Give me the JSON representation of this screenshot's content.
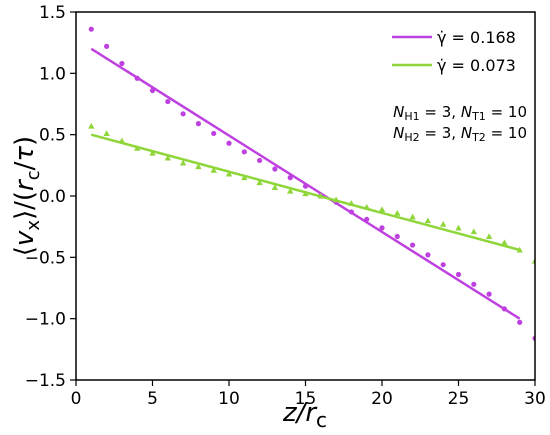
{
  "chart_data": {
    "type": "scatter",
    "title": "",
    "xlabel": "z/r_c",
    "ylabel": "⟨v_x⟩/(r_c/τ)",
    "xlim": [
      0,
      30
    ],
    "ylim": [
      -1.5,
      1.5
    ],
    "xticks": [
      0,
      5,
      10,
      15,
      20,
      25,
      30
    ],
    "yticks": [
      -1.5,
      -1.0,
      -0.5,
      0.0,
      0.5,
      1.0,
      1.5
    ],
    "xtick_labels": [
      "0",
      "5",
      "10",
      "15",
      "20",
      "25",
      "30"
    ],
    "ytick_labels": [
      "−1.5",
      "−1.0",
      "−0.5",
      "0.0",
      "0.5",
      "1.0",
      "1.5"
    ],
    "grid": false,
    "legend_position": "top-right",
    "series": [
      {
        "name": "γ̇ = 0.168",
        "legend_label": "γ̇ = 0.168",
        "color": "#bf40e0",
        "marker": "circle",
        "fit_line": {
          "x": [
            1,
            29
          ],
          "y": [
            1.2,
            -1.0
          ]
        },
        "points": {
          "x": [
            1,
            2,
            3,
            4,
            5,
            6,
            7,
            8,
            9,
            10,
            11,
            12,
            13,
            14,
            15,
            16,
            17,
            18,
            19,
            20,
            21,
            22,
            23,
            24,
            25,
            26,
            27,
            28,
            29,
            30
          ],
          "y": [
            1.36,
            1.22,
            1.08,
            0.96,
            0.86,
            0.77,
            0.67,
            0.59,
            0.51,
            0.43,
            0.36,
            0.29,
            0.22,
            0.15,
            0.08,
            0.0,
            -0.05,
            -0.13,
            -0.19,
            -0.26,
            -0.33,
            -0.4,
            -0.48,
            -0.56,
            -0.64,
            -0.72,
            -0.8,
            -0.92,
            -1.03,
            -1.16
          ]
        }
      },
      {
        "name": "γ̇ = 0.073",
        "legend_label": "γ̇ = 0.073",
        "color": "#8fd63a",
        "marker": "triangle",
        "fit_line": {
          "x": [
            1,
            29
          ],
          "y": [
            0.5,
            -0.44
          ]
        },
        "points": {
          "x": [
            1,
            2,
            3,
            4,
            5,
            6,
            7,
            8,
            9,
            10,
            11,
            12,
            13,
            14,
            15,
            16,
            17,
            18,
            19,
            20,
            21,
            22,
            23,
            24,
            25,
            26,
            27,
            28,
            29,
            30
          ],
          "y": [
            0.57,
            0.51,
            0.45,
            0.39,
            0.35,
            0.31,
            0.27,
            0.24,
            0.21,
            0.18,
            0.15,
            0.11,
            0.07,
            0.04,
            0.02,
            0.0,
            -0.03,
            -0.06,
            -0.09,
            -0.11,
            -0.14,
            -0.17,
            -0.2,
            -0.23,
            -0.26,
            -0.29,
            -0.33,
            -0.38,
            -0.44,
            -0.53
          ]
        }
      }
    ],
    "annotations": [
      {
        "text": "N_H1 = 3, N_T1 = 10"
      },
      {
        "text": "N_H2 = 3, N_T2 = 10"
      }
    ]
  }
}
